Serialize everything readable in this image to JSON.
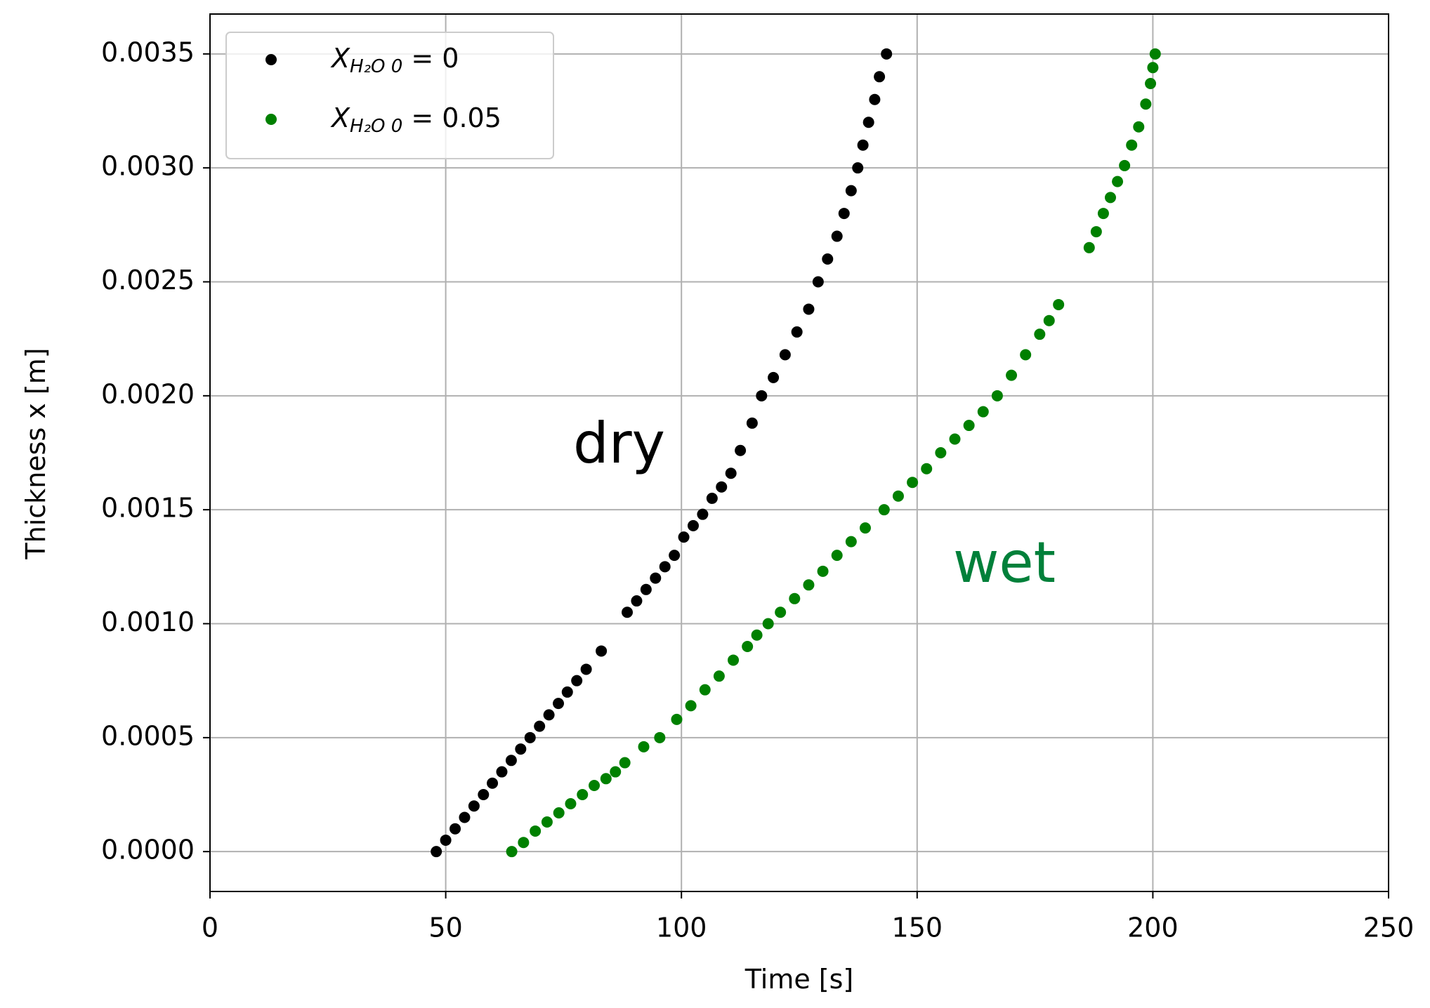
{
  "chart_data": {
    "type": "scatter",
    "xlabel": "Time [s]",
    "ylabel": "Thickness x [m]",
    "xlim": [
      0,
      250
    ],
    "ylim": [
      -0.000175,
      0.003675
    ],
    "xticks": [
      0,
      50,
      100,
      150,
      200,
      250
    ],
    "yticks": [
      {
        "value": 0,
        "label": "0.0000"
      },
      {
        "value": 0.0005,
        "label": "0.0005"
      },
      {
        "value": 0.001,
        "label": "0.0010"
      },
      {
        "value": 0.0015,
        "label": "0.0015"
      },
      {
        "value": 0.002,
        "label": "0.0020"
      },
      {
        "value": 0.0025,
        "label": "0.0025"
      },
      {
        "value": 0.003,
        "label": "0.0030"
      },
      {
        "value": 0.0035,
        "label": "0.0035"
      }
    ],
    "grid": true,
    "legend": "upper left",
    "annotations": [
      {
        "text": "dry",
        "color": "#000000"
      },
      {
        "text": "wet",
        "color": "#00803a"
      }
    ],
    "series": [
      {
        "name": "XH₂O 0 = 0",
        "color": "#000000",
        "x": [
          48,
          50,
          52,
          54,
          56,
          58,
          59.9,
          61.9,
          63.9,
          65.9,
          67.9,
          69.9,
          71.9,
          73.9,
          75.8,
          77.8,
          79.8,
          83,
          88.5,
          90.5,
          92.5,
          94.5,
          96.5,
          98.5,
          100.5,
          102.5,
          104.5,
          106.5,
          108.5,
          110.5,
          112.5,
          115,
          117,
          119.5,
          122,
          124.5,
          127,
          129,
          131,
          133,
          134.5,
          136,
          137.4,
          138.5,
          139.7,
          141,
          142,
          143.5
        ],
        "values": [
          0,
          5e-05,
          0.0001,
          0.00015,
          0.0002,
          0.00025,
          0.0003,
          0.00035,
          0.0004,
          0.00045,
          0.0005,
          0.00055,
          0.0006,
          0.00065,
          0.0007,
          0.00075,
          0.0008,
          0.00088,
          0.00105,
          0.0011,
          0.00115,
          0.0012,
          0.00125,
          0.0013,
          0.00138,
          0.00143,
          0.00148,
          0.00155,
          0.0016,
          0.00166,
          0.00176,
          0.00188,
          0.002,
          0.00208,
          0.00218,
          0.00228,
          0.00238,
          0.0025,
          0.0026,
          0.0027,
          0.0028,
          0.0029,
          0.003,
          0.0031,
          0.0032,
          0.0033,
          0.0034,
          0.0035
        ]
      },
      {
        "name": "XH₂O 0 = 0.05",
        "color": "#008000",
        "x": [
          64,
          66.5,
          69,
          71.5,
          74,
          76.5,
          79,
          81.5,
          84,
          86,
          88,
          92,
          95.4,
          99,
          102,
          105,
          108,
          111,
          114,
          116,
          118.4,
          121,
          124,
          127,
          130,
          133,
          136,
          139,
          143,
          146,
          149,
          152,
          155,
          158,
          161,
          164,
          167,
          170,
          173,
          176,
          178,
          180,
          186.5,
          188,
          189.5,
          191,
          192.5,
          194,
          195.5,
          197,
          198.5,
          199.5,
          200,
          200.5
        ],
        "values": [
          0,
          4e-05,
          9e-05,
          0.00013,
          0.00017,
          0.00021,
          0.00025,
          0.00029,
          0.00032,
          0.00035,
          0.00039,
          0.00046,
          0.0005,
          0.00058,
          0.00064,
          0.00071,
          0.00077,
          0.00084,
          0.0009,
          0.00095,
          0.001,
          0.00105,
          0.00111,
          0.00117,
          0.00123,
          0.0013,
          0.00136,
          0.00142,
          0.0015,
          0.00156,
          0.00162,
          0.00168,
          0.00175,
          0.00181,
          0.00187,
          0.00193,
          0.002,
          0.00209,
          0.00218,
          0.00227,
          0.00233,
          0.0024,
          0.00265,
          0.00272,
          0.0028,
          0.00287,
          0.00294,
          0.00301,
          0.0031,
          0.00318,
          0.00328,
          0.00337,
          0.00344,
          0.0035
        ]
      }
    ]
  }
}
